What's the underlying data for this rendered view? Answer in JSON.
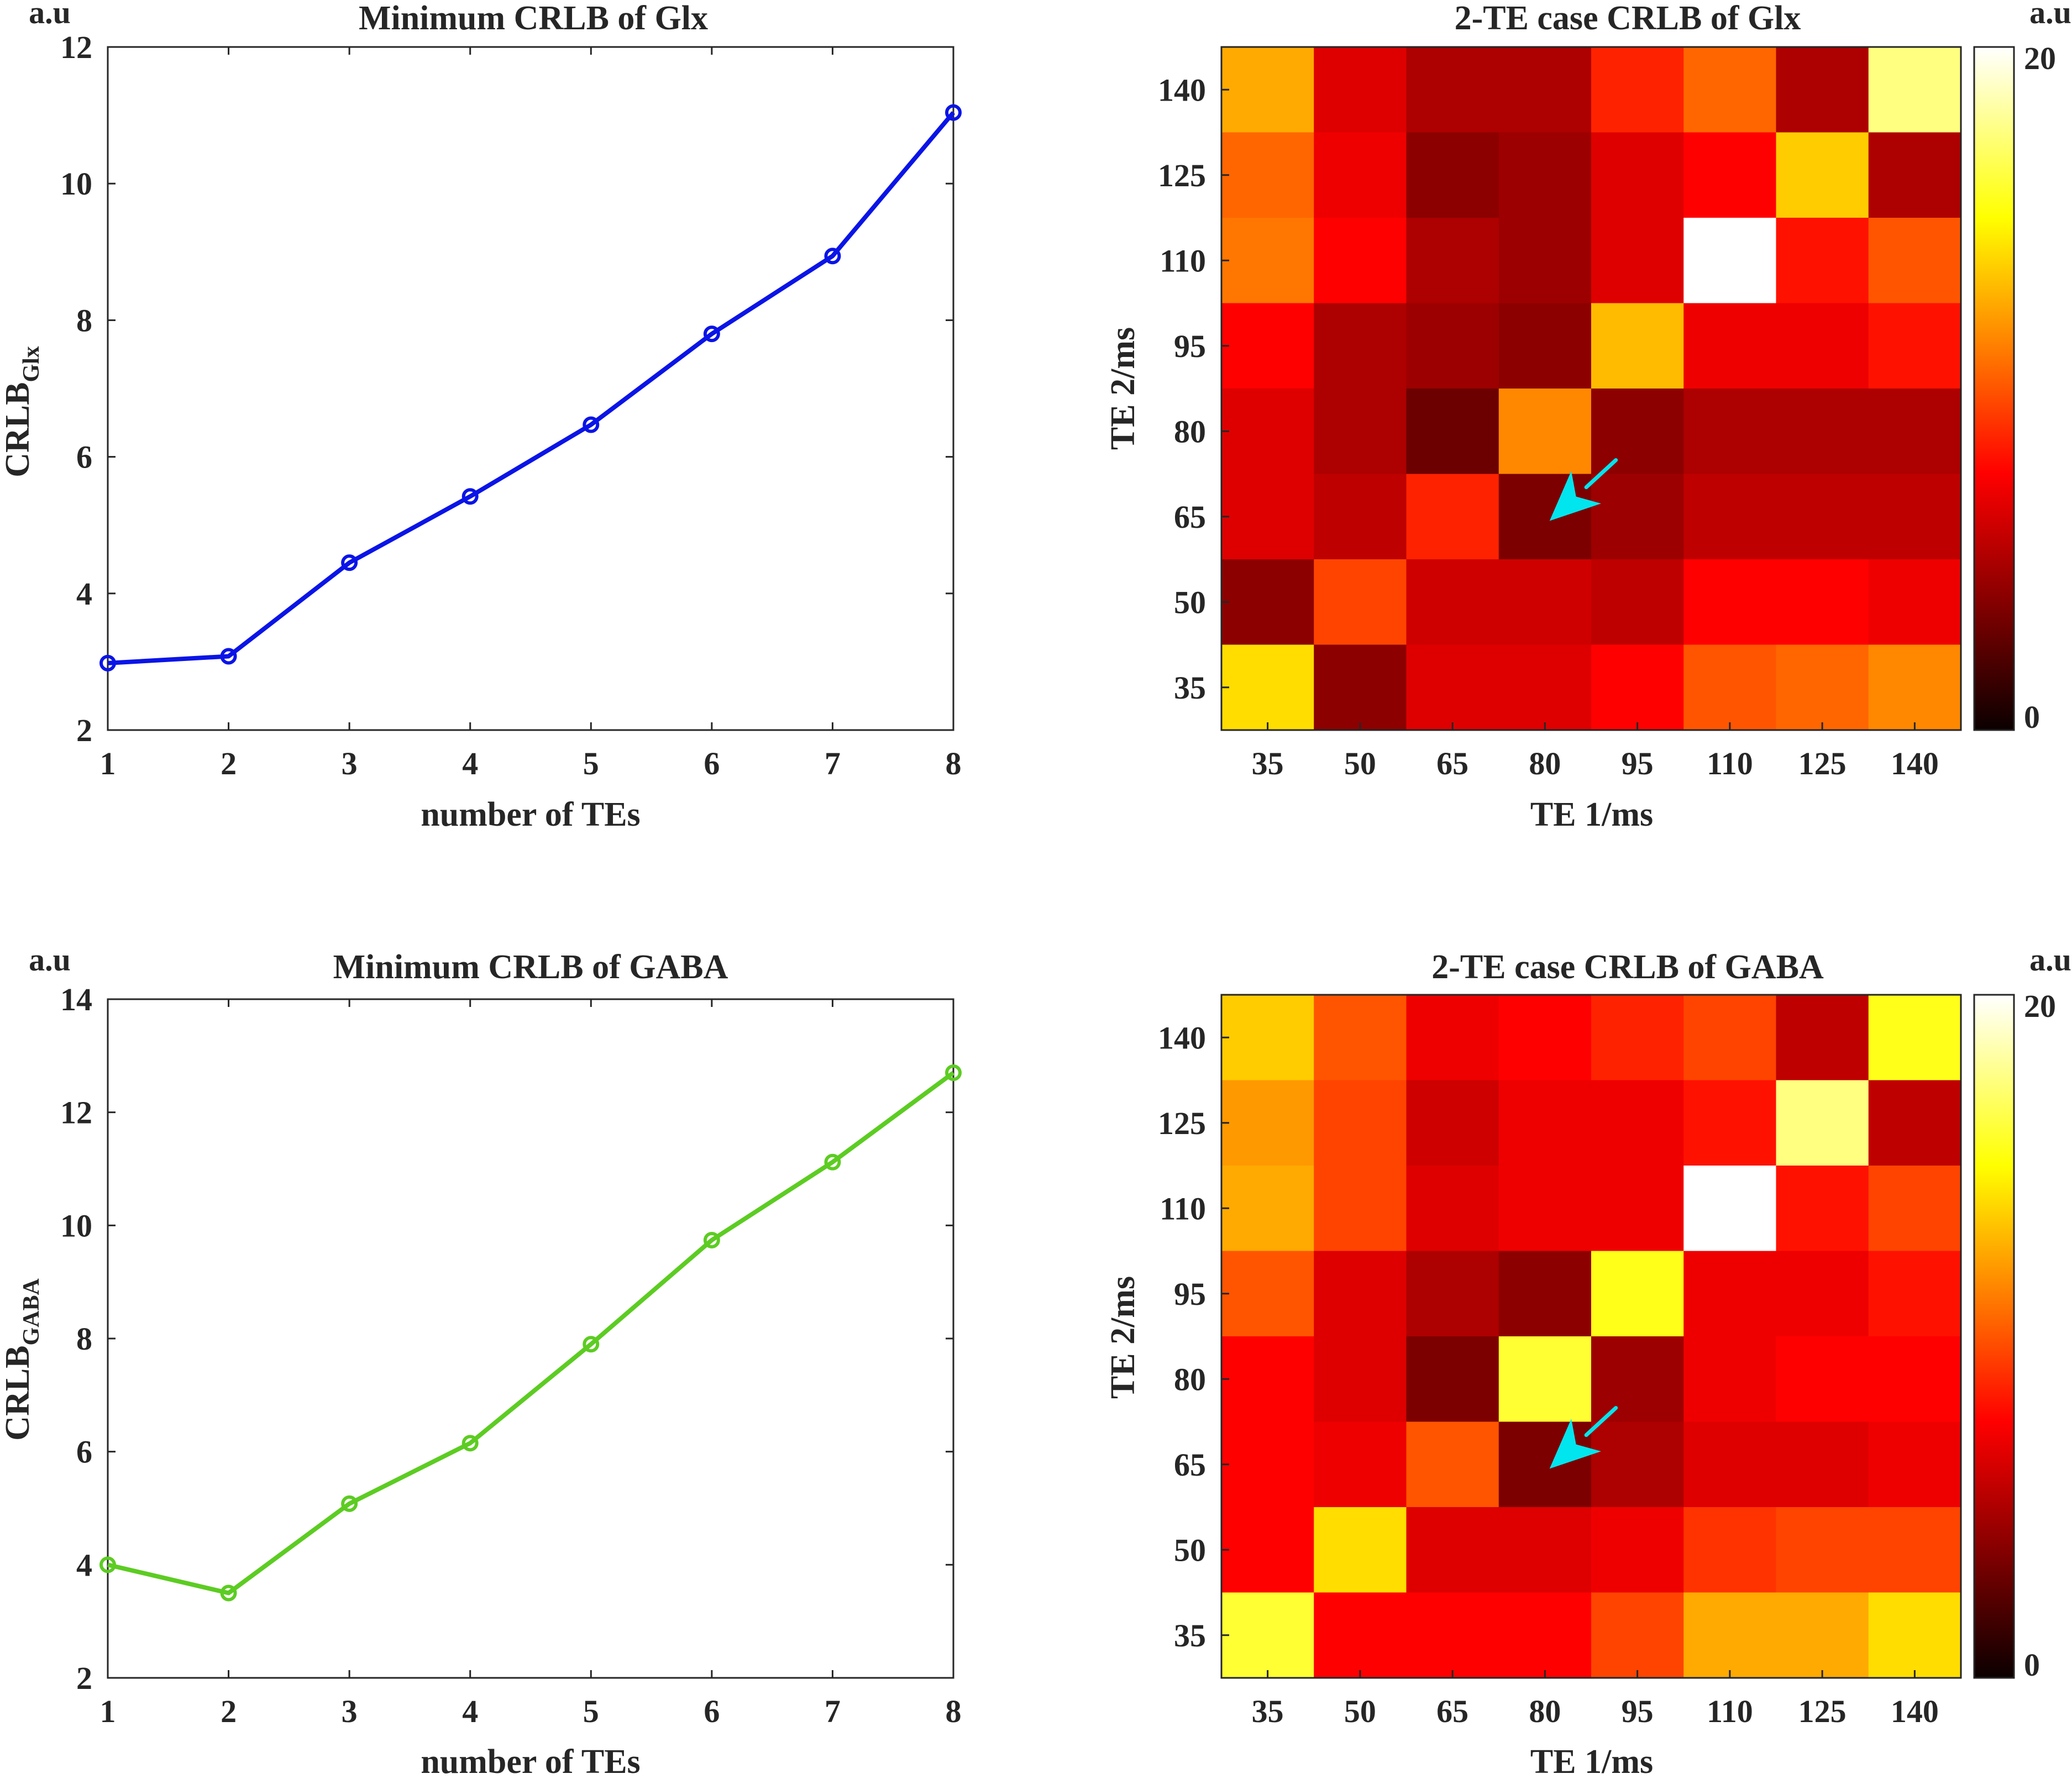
{
  "chart_data": [
    {
      "type": "line",
      "title": "Minimum CRLB of Glx",
      "xlabel": "number of TEs",
      "ylabel_main": "CRLB",
      "ylabel_sub": "Glx",
      "unit": "a.u",
      "x": [
        1,
        2,
        3,
        4,
        5,
        6,
        7,
        8
      ],
      "values": [
        2.98,
        3.08,
        4.45,
        5.42,
        6.47,
        7.8,
        8.94,
        11.04
      ],
      "xlim": [
        1,
        8
      ],
      "ylim": [
        2,
        12
      ],
      "xticks": [
        1,
        2,
        3,
        4,
        5,
        6,
        7,
        8
      ],
      "yticks": [
        2,
        4,
        6,
        8,
        10,
        12
      ],
      "color": "#0a14e6",
      "marker": "circle",
      "grid": false
    },
    {
      "type": "heatmap",
      "title": "2-TE case CRLB of Glx",
      "xlabel": "TE 1/ms",
      "ylabel": "TE 2/ms",
      "unit": "a.u",
      "categories_x": [
        "35",
        "50",
        "65",
        "80",
        "95",
        "110",
        "125",
        "140"
      ],
      "categories_y": [
        "140",
        "125",
        "110",
        "95",
        "80",
        "65",
        "50",
        "35"
      ],
      "values": [
        [
          12.5,
          6.5,
          5.0,
          5.0,
          8.5,
          10.5,
          5.0,
          17.5
        ],
        [
          10.5,
          7.0,
          4.0,
          4.5,
          6.5,
          7.5,
          13.5,
          5.0
        ],
        [
          11.0,
          7.5,
          5.0,
          4.5,
          6.5,
          20.0,
          8.0,
          10.0
        ],
        [
          7.5,
          5.0,
          4.5,
          4.0,
          13.0,
          7.0,
          7.0,
          8.0
        ],
        [
          6.5,
          5.0,
          3.0,
          11.5,
          4.0,
          5.0,
          5.0,
          5.0
        ],
        [
          6.5,
          5.5,
          8.5,
          3.5,
          4.5,
          5.5,
          5.5,
          5.5
        ],
        [
          4.0,
          9.5,
          6.0,
          6.0,
          5.5,
          7.5,
          7.5,
          7.0
        ],
        [
          14.0,
          4.0,
          6.5,
          6.5,
          7.5,
          10.0,
          10.5,
          11.5
        ]
      ],
      "clim": [
        0,
        20
      ],
      "colormap": "hot",
      "colorbar_ticks": [
        0,
        20
      ],
      "annotation": {
        "type": "arrow",
        "color": "#00e5ee",
        "points_to": {
          "x": "80",
          "y": "65"
        }
      }
    },
    {
      "type": "line",
      "title": "Minimum CRLB of GABA",
      "xlabel": "number of TEs",
      "ylabel_main": "CRLB",
      "ylabel_sub": "GABA",
      "unit": "a.u",
      "x": [
        1,
        2,
        3,
        4,
        5,
        6,
        7,
        8
      ],
      "values": [
        4.0,
        3.5,
        5.08,
        6.15,
        7.9,
        9.74,
        11.12,
        12.7
      ],
      "xlim": [
        1,
        8
      ],
      "ylim": [
        2,
        14
      ],
      "xticks": [
        1,
        2,
        3,
        4,
        5,
        6,
        7,
        8
      ],
      "yticks": [
        2,
        4,
        6,
        8,
        10,
        12,
        14
      ],
      "color": "#5ccc22",
      "marker": "circle",
      "grid": false
    },
    {
      "type": "heatmap",
      "title": "2-TE case CRLB of GABA",
      "xlabel": "TE 1/ms",
      "ylabel": "TE 2/ms",
      "unit": "a.u",
      "categories_x": [
        "35",
        "50",
        "65",
        "80",
        "95",
        "110",
        "125",
        "140"
      ],
      "categories_y": [
        "140",
        "125",
        "110",
        "95",
        "80",
        "65",
        "50",
        "35"
      ],
      "values": [
        [
          13.5,
          10.0,
          7.0,
          7.5,
          8.5,
          9.5,
          5.5,
          15.5
        ],
        [
          12.0,
          9.5,
          6.0,
          7.0,
          7.0,
          8.0,
          17.5,
          5.5
        ],
        [
          12.5,
          9.5,
          6.5,
          7.0,
          7.0,
          20.0,
          8.0,
          9.5
        ],
        [
          10.0,
          6.5,
          5.0,
          4.0,
          15.5,
          7.0,
          7.0,
          8.0
        ],
        [
          7.5,
          6.5,
          3.5,
          16.0,
          4.5,
          7.0,
          7.5,
          7.5
        ],
        [
          7.5,
          7.0,
          10.0,
          3.5,
          5.0,
          6.5,
          6.5,
          7.0
        ],
        [
          7.5,
          14.0,
          6.5,
          6.5,
          7.0,
          9.0,
          9.5,
          9.5
        ],
        [
          16.0,
          7.5,
          7.5,
          7.5,
          9.5,
          12.5,
          12.5,
          14.0
        ]
      ],
      "clim": [
        0,
        20
      ],
      "colormap": "hot",
      "colorbar_ticks": [
        0,
        20
      ],
      "annotation": {
        "type": "arrow",
        "color": "#00e5ee",
        "points_to": {
          "x": "80",
          "y": "65"
        }
      }
    }
  ]
}
